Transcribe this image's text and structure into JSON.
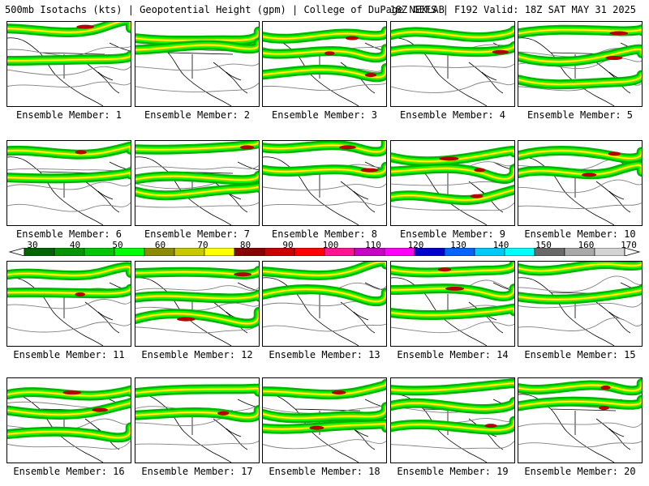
{
  "header": {
    "title_left": "500mb Isotachs (kts) | Geopotential Height (gpm) | College of DuPage NEXLAB",
    "title_right": "18Z GEFS | F192 Valid: 18Z SAT MAY 31 2025"
  },
  "panels": [
    {
      "label": "Ensemble Member: 1"
    },
    {
      "label": "Ensemble Member: 2"
    },
    {
      "label": "Ensemble Member: 3"
    },
    {
      "label": "Ensemble Member: 4"
    },
    {
      "label": "Ensemble Member: 5"
    },
    {
      "label": "Ensemble Member: 6"
    },
    {
      "label": "Ensemble Member: 7"
    },
    {
      "label": "Ensemble Member: 8"
    },
    {
      "label": "Ensemble Member: 9"
    },
    {
      "label": "Ensemble Member: 10"
    },
    {
      "label": "Ensemble Member: 11"
    },
    {
      "label": "Ensemble Member: 12"
    },
    {
      "label": "Ensemble Member: 13"
    },
    {
      "label": "Ensemble Member: 14"
    },
    {
      "label": "Ensemble Member: 15"
    },
    {
      "label": "Ensemble Member: 16"
    },
    {
      "label": "Ensemble Member: 17"
    },
    {
      "label": "Ensemble Member: 18"
    },
    {
      "label": "Ensemble Member: 19"
    },
    {
      "label": "Ensemble Member: 20"
    }
  ],
  "colorbar": {
    "labels": [
      "30",
      "40",
      "50",
      "60",
      "70",
      "80",
      "90",
      "100",
      "110",
      "120",
      "130",
      "140",
      "150",
      "160",
      "170"
    ],
    "colors": [
      "#006400",
      "#009600",
      "#00c800",
      "#00ff00",
      "#8c8c00",
      "#c8c800",
      "#ffff00",
      "#8b0000",
      "#c80000",
      "#ff0000",
      "#ff1493",
      "#c800c8",
      "#ff00ff",
      "#0000c8",
      "#0064ff",
      "#00c8ff",
      "#00ffff",
      "#696969",
      "#a9a9a9",
      "#d3d3d3"
    ],
    "ends": "#ffffff"
  }
}
